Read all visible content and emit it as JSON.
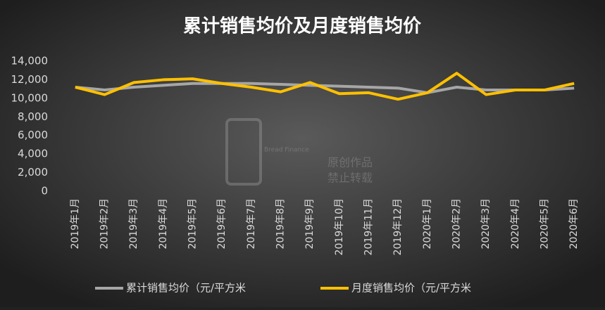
{
  "chart_data": {
    "type": "line",
    "title": "累计销售均价及月度销售均价",
    "categories": [
      "2019年1月",
      "2019年2月",
      "2019年3月",
      "2019年4月",
      "2019年5月",
      "2019年6月",
      "2019年7月",
      "2019年8月",
      "2019年9月",
      "2019年10月",
      "2019年11月",
      "2019年12月",
      "2020年1月",
      "2020年2月",
      "2020年3月",
      "2020年4月",
      "2020年5月",
      "2020年6月"
    ],
    "series": [
      {
        "name": "累计销售均价（元/平方米",
        "color": "#a6a6a6",
        "values": [
          11200,
          10900,
          11200,
          11400,
          11600,
          11600,
          11600,
          11500,
          11400,
          11300,
          11200,
          11100,
          10600,
          11200,
          10900,
          10900,
          10900,
          11100
        ]
      },
      {
        "name": "月度销售均价（元/平方米",
        "color": "#ffc000",
        "values": [
          11200,
          10400,
          11700,
          12000,
          12100,
          11600,
          11200,
          10700,
          11700,
          10500,
          10600,
          9900,
          10600,
          12700,
          10400,
          10900,
          10900,
          11600
        ]
      }
    ],
    "ylim": [
      0,
      14000
    ],
    "yticks": [
      0,
      {
        "value": 2000,
        "label": "2,000"
      },
      {
        "value": 4000,
        "label": "4,000"
      },
      {
        "value": 6000,
        "label": "6,000"
      },
      {
        "value": 8000,
        "label": "8,000"
      },
      {
        "value": 10000,
        "label": "10,000"
      },
      {
        "value": 12000,
        "label": "12,000"
      },
      {
        "value": 14000,
        "label": "14,000"
      }
    ],
    "grid": false,
    "legend": "bottom",
    "watermark": [
      "Bread Finance",
      "原创作品",
      "禁止转载"
    ]
  }
}
